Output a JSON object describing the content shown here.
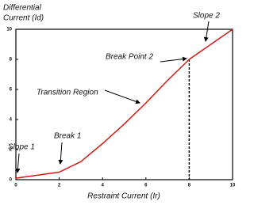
{
  "chart_data": {
    "type": "line",
    "ylabel": [
      "Differential",
      "Current (Id)"
    ],
    "xlabel": "Restraint Current (Ir)",
    "x": [
      0,
      2,
      3,
      4,
      5,
      6,
      7,
      8,
      9,
      10
    ],
    "series": [
      {
        "color": "#d11a10",
        "values": [
          0.1,
          0.5,
          1.2,
          2.4,
          3.7,
          5.1,
          6.6,
          8,
          9,
          10
        ]
      }
    ],
    "xlim": [
      0,
      10
    ],
    "ylim": [
      0,
      10
    ],
    "xticks": [
      0,
      2,
      4,
      6,
      8,
      10
    ],
    "yticks": [
      0,
      2,
      4,
      6,
      8,
      10
    ],
    "grid": false,
    "annotations": [
      "Slope 1",
      "Break 1",
      "Transition Region",
      "Break Point 2",
      "Slope 2"
    ]
  }
}
